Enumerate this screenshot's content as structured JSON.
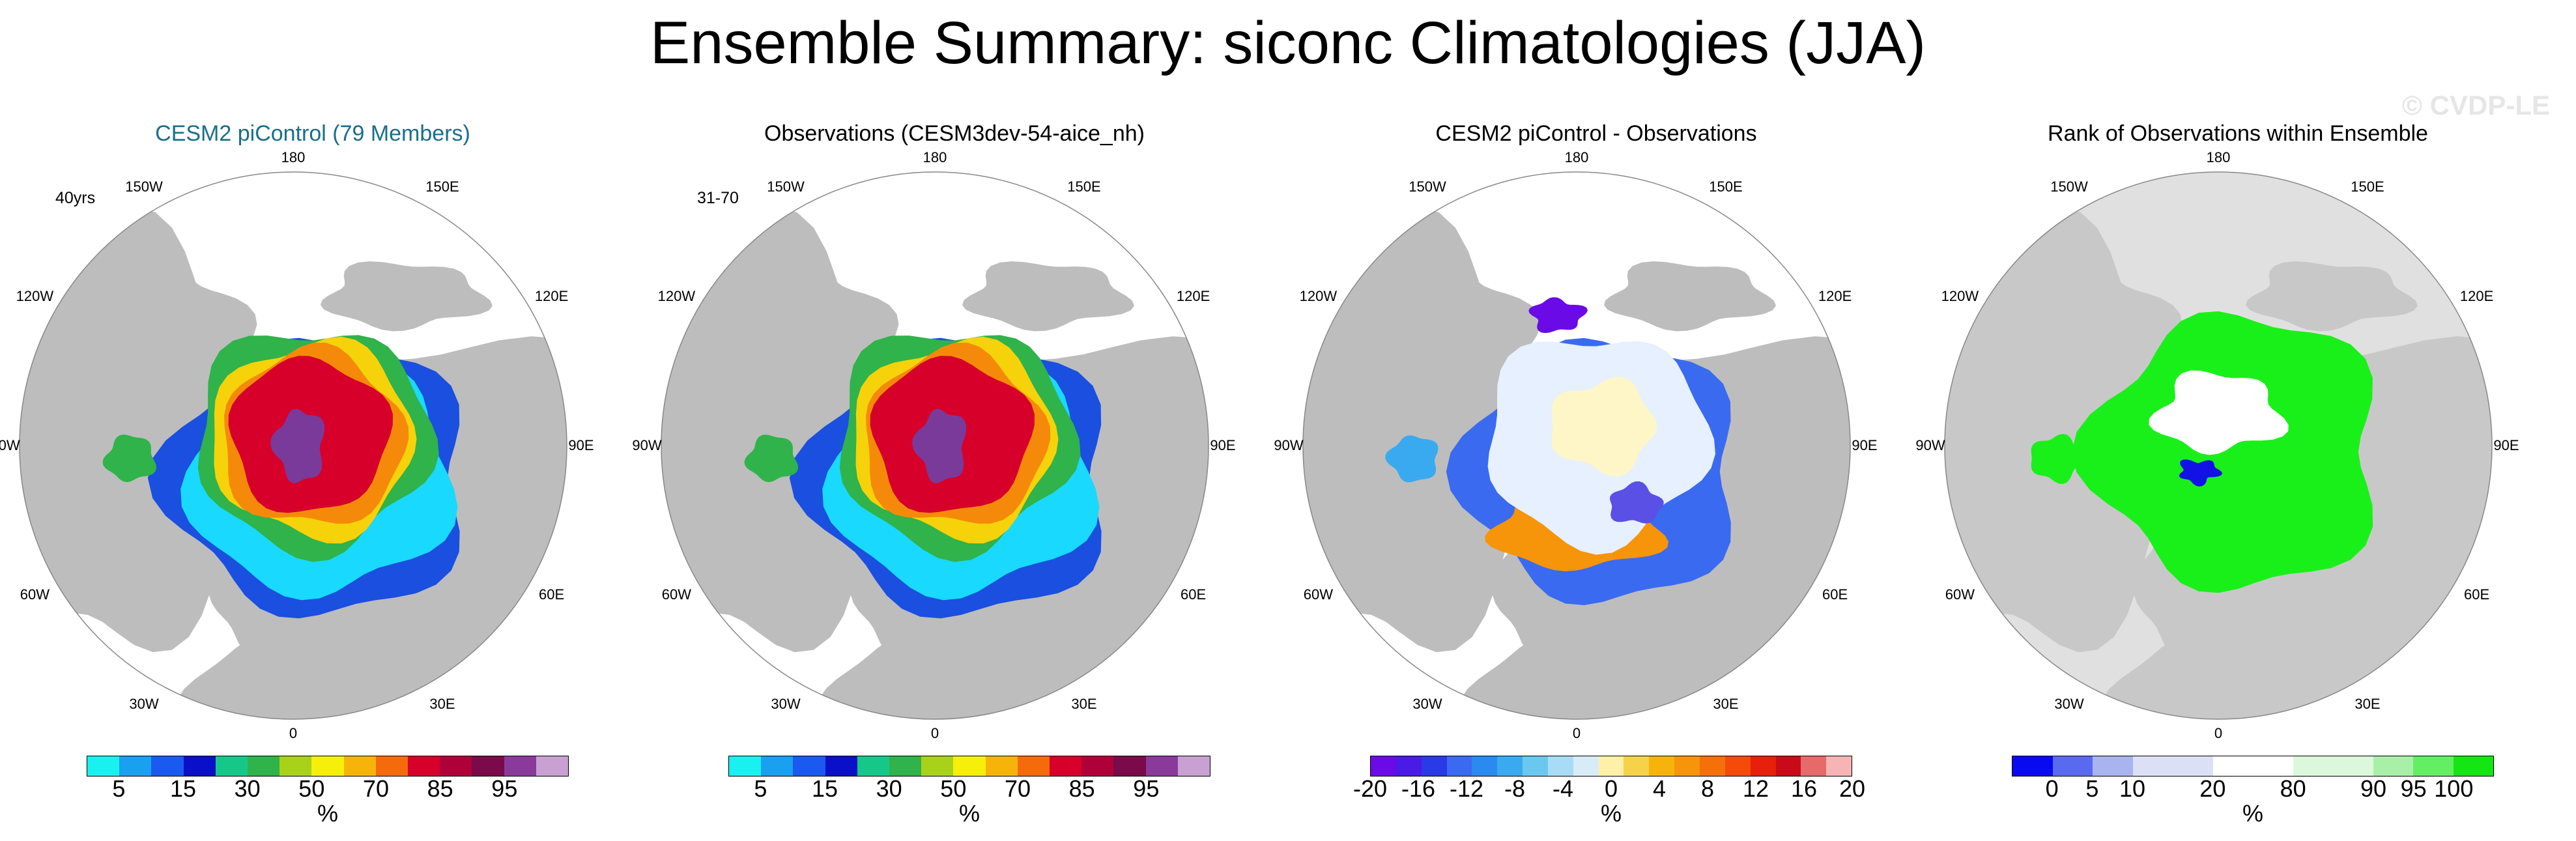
{
  "title": "Ensemble Summary: siconc Climatologies (JJA)",
  "watermark": "© CVDP-LE",
  "colors": {
    "land": "#bdbdbd",
    "ice_core": "#d6002a",
    "ice_deep": "#7a3a9a",
    "ice_edge_green": "#2fb34a",
    "ice_edge_yellow": "#f6d20a",
    "ice_edge_orange": "#f58a0a",
    "ice_edge_blue": "#1a4fe0",
    "ice_edge_cyan": "#19d9ff",
    "rank_green": "#19f019",
    "rank_blue": "#1212e6",
    "diff_pale": "#e6f0ff"
  },
  "longitude_labels": [
    "180",
    "150E",
    "120E",
    "90E",
    "60E",
    "30E",
    "0",
    "30W",
    "60W",
    "90W",
    "120W",
    "150W"
  ],
  "chart_data": [
    {
      "type": "heatmap",
      "title": "CESM2 piControl (79 Members)",
      "period": "40yrs",
      "colorbar": {
        "colors": [
          "#19f0f0",
          "#1aa0f0",
          "#1a5af0",
          "#0a10c8",
          "#15c88a",
          "#2fb34a",
          "#a8d21a",
          "#f6ef0a",
          "#f6b40a",
          "#f56a0a",
          "#d6002a",
          "#b0003a",
          "#7a0a4a",
          "#8a3a9a",
          "#c8a0d2"
        ],
        "ticks": [
          "5",
          "15",
          "30",
          "50",
          "70",
          "85",
          "95"
        ],
        "tick_bins": [
          1,
          3,
          5,
          7,
          9,
          11,
          13
        ],
        "unit": "%"
      }
    },
    {
      "type": "heatmap",
      "title": "Observations (CESM3dev-54-aice_nh)",
      "period": "31-70",
      "colorbar": {
        "colors": [
          "#19f0f0",
          "#1aa0f0",
          "#1a5af0",
          "#0a10c8",
          "#15c88a",
          "#2fb34a",
          "#a8d21a",
          "#f6ef0a",
          "#f6b40a",
          "#f56a0a",
          "#d6002a",
          "#b0003a",
          "#7a0a4a",
          "#8a3a9a",
          "#c8a0d2"
        ],
        "ticks": [
          "5",
          "15",
          "30",
          "50",
          "70",
          "85",
          "95"
        ],
        "tick_bins": [
          1,
          3,
          5,
          7,
          9,
          11,
          13
        ],
        "unit": "%"
      }
    },
    {
      "type": "heatmap",
      "title": "CESM2 piControl - Observations",
      "period": "",
      "colorbar": {
        "colors": [
          "#6a0ae6",
          "#4a1ae6",
          "#2a3ae6",
          "#3a6af0",
          "#2a8af0",
          "#3aaaf0",
          "#6ac8f0",
          "#a8dcf6",
          "#d8ecf8",
          "#fff0a8",
          "#f6d24a",
          "#f6b40a",
          "#f6940a",
          "#f5700a",
          "#f54a0a",
          "#e6200a",
          "#c80a1a",
          "#e66a6a",
          "#f6b4b4"
        ],
        "ticks": [
          "-20",
          "-16",
          "-12",
          "-8",
          "-4",
          "0",
          "4",
          "8",
          "12",
          "16",
          "20"
        ],
        "tick_bins": [
          0,
          2,
          4,
          6,
          8,
          10,
          12,
          14,
          16,
          18,
          20
        ],
        "unit": "%"
      }
    },
    {
      "type": "heatmap",
      "title": "Rank of Observations within Ensemble",
      "period": "",
      "colorbar": {
        "colors": [
          "#0a0af0",
          "#5a6af0",
          "#a8b4f0",
          "#dce0f6",
          "#dce0f6",
          "#ffffff",
          "#ffffff",
          "#dcf8dc",
          "#dcf8dc",
          "#a8f0a8",
          "#64ee64",
          "#14e614"
        ],
        "ticks": [
          "0",
          "5",
          "10",
          "20",
          "80",
          "90",
          "95",
          "100"
        ],
        "tick_bins": [
          1,
          2,
          3,
          5,
          7,
          9,
          10,
          11
        ],
        "unit": "%"
      }
    }
  ]
}
